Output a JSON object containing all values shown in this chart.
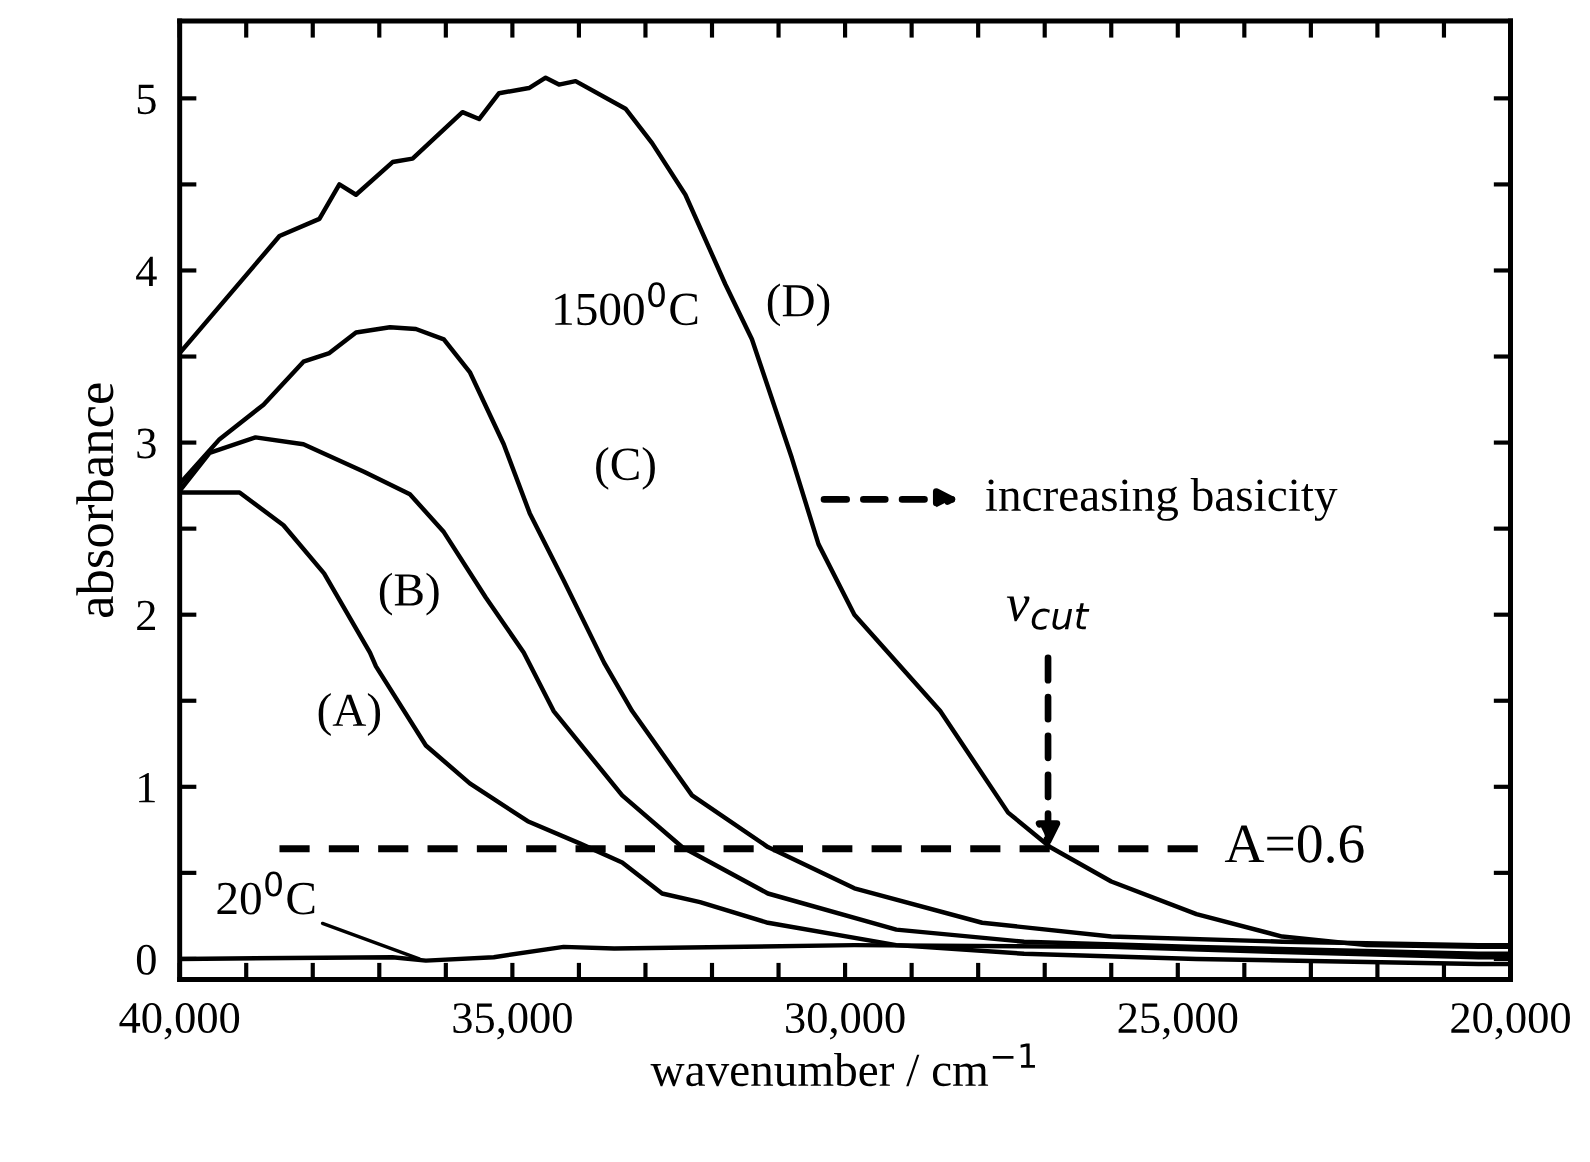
{
  "chart_data": {
    "type": "line",
    "xlabel": "wavenumber / cm$^{−1}$",
    "ylabel": "absorbance",
    "xlim": [
      40000,
      20000
    ],
    "ylim": [
      -0.12,
      5.45
    ],
    "xticks": [
      {
        "value": 40000,
        "label": "40,000"
      },
      {
        "value": 39000,
        "label": null
      },
      {
        "value": 38000,
        "label": null
      },
      {
        "value": 37000,
        "label": null
      },
      {
        "value": 36000,
        "label": null
      },
      {
        "value": 35000,
        "label": "35,000"
      },
      {
        "value": 34000,
        "label": null
      },
      {
        "value": 33000,
        "label": null
      },
      {
        "value": 32000,
        "label": null
      },
      {
        "value": 31000,
        "label": null
      },
      {
        "value": 30000,
        "label": "30,000"
      },
      {
        "value": 29000,
        "label": null
      },
      {
        "value": 28000,
        "label": null
      },
      {
        "value": 27000,
        "label": null
      },
      {
        "value": 26000,
        "label": null
      },
      {
        "value": 25000,
        "label": "25,000"
      },
      {
        "value": 24000,
        "label": null
      },
      {
        "value": 23000,
        "label": null
      },
      {
        "value": 22000,
        "label": null
      },
      {
        "value": 21000,
        "label": null
      },
      {
        "value": 20000,
        "label": "20,000"
      }
    ],
    "yticks": [
      0,
      {
        "value": 0.5,
        "label": null
      },
      1,
      {
        "value": 1.5,
        "label": null
      },
      2,
      {
        "value": 2.5,
        "label": null
      },
      3,
      {
        "value": 3.5,
        "label": null
      },
      4,
      {
        "value": 4.5,
        "label": null
      },
      5
    ],
    "grid": false,
    "marker": "none",
    "line_style": "solid",
    "series": [
      {
        "name": "(A)",
        "color": "#000000",
        "x": [
          40000,
          39100,
          38440,
          37830,
          37140,
          37050,
          36300,
          35640,
          34770,
          33980,
          33350,
          32750,
          32180,
          31160,
          29230,
          27310,
          24720,
          20480,
          20000
        ],
        "values": [
          2.71,
          2.71,
          2.52,
          2.24,
          1.78,
          1.7,
          1.24,
          1.02,
          0.8,
          0.67,
          0.56,
          0.38,
          0.33,
          0.21,
          0.08,
          0.03,
          0.0,
          -0.03,
          -0.03
        ]
      },
      {
        "name": "(B)",
        "color": "#000000",
        "x": [
          40000,
          39550,
          38860,
          38140,
          37230,
          36540,
          36030,
          35400,
          34830,
          34380,
          33350,
          32450,
          31160,
          29230,
          27310,
          24720,
          20480,
          20000
        ],
        "values": [
          2.72,
          2.94,
          3.03,
          2.99,
          2.83,
          2.7,
          2.48,
          2.1,
          1.78,
          1.44,
          0.95,
          0.65,
          0.38,
          0.17,
          0.1,
          0.07,
          0.03,
          0.03
        ]
      },
      {
        "name": "(C)",
        "color": "#000000",
        "x": [
          40000,
          39400,
          38740,
          38140,
          37750,
          37350,
          36840,
          36450,
          36030,
          35640,
          35130,
          34740,
          34230,
          33620,
          33200,
          32300,
          31160,
          29860,
          27940,
          26000,
          23430,
          20480,
          20000
        ],
        "values": [
          2.76,
          3.02,
          3.22,
          3.47,
          3.52,
          3.64,
          3.67,
          3.66,
          3.6,
          3.41,
          2.99,
          2.59,
          2.2,
          1.72,
          1.44,
          0.95,
          0.65,
          0.41,
          0.21,
          0.13,
          0.1,
          0.08,
          0.08
        ]
      },
      {
        "name": "(D)",
        "color": "#000000",
        "x": [
          40000,
          38500,
          37900,
          37600,
          37350,
          36800,
          36500,
          35750,
          35500,
          35200,
          34750,
          34500,
          34300,
          34050,
          33300,
          32900,
          32400,
          31800,
          31400,
          30800,
          30400,
          29860,
          28570,
          27550,
          26920,
          26000,
          24720,
          23430,
          22160,
          20480,
          20000
        ],
        "values": [
          3.52,
          4.2,
          4.3,
          4.5,
          4.44,
          4.63,
          4.65,
          4.92,
          4.88,
          5.03,
          5.06,
          5.12,
          5.08,
          5.1,
          4.94,
          4.74,
          4.44,
          3.92,
          3.6,
          2.91,
          2.41,
          2.0,
          1.44,
          0.85,
          0.65,
          0.45,
          0.26,
          0.13,
          0.08,
          0.07,
          0.07
        ]
      },
      {
        "color": "#000000",
        "x": [
          40000,
          36800,
          36300,
          35280,
          34230,
          33470,
          29860,
          26000,
          23430,
          20480,
          20000
        ],
        "values": [
          0.0,
          0.01,
          -0.01,
          0.01,
          0.07,
          0.06,
          0.08,
          0.07,
          0.04,
          0.01,
          0.01
        ]
      },
      {
        "color": "#000000",
        "line_style": "dashed",
        "x": [
          38500,
          24700
        ],
        "values": [
          0.64,
          0.64
        ]
      }
    ],
    "annotations": [
      "1500$^{0}$C",
      {
        "text": "20$^{0}$C",
        "x": 36400,
        "y": 0.0
      },
      "increasing basicity",
      {
        "text": "ν$_{cut}$",
        "x": 26950,
        "y": 0.64
      },
      {
        "text": "A=0.6",
        "x": 24700,
        "y": 0.64
      }
    ]
  }
}
